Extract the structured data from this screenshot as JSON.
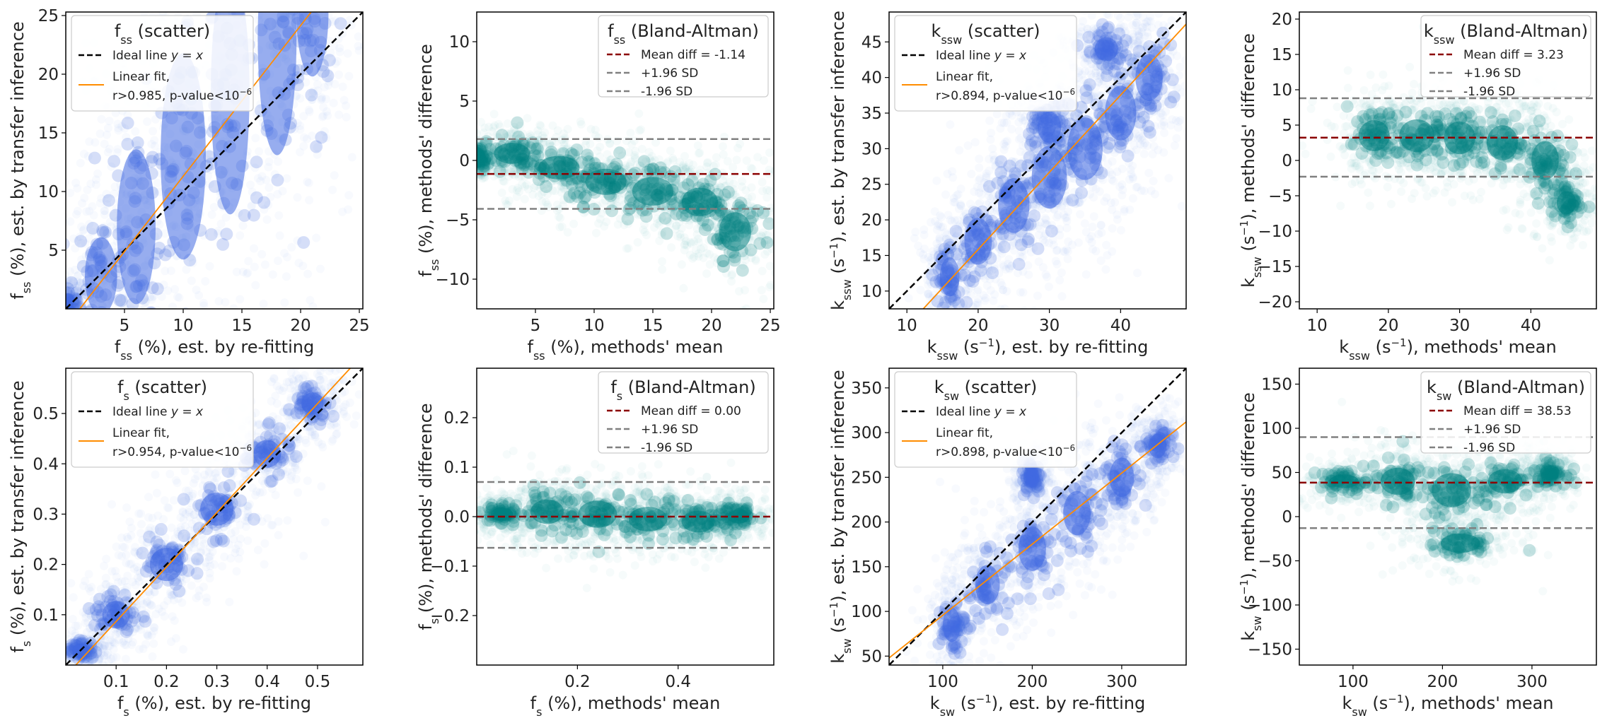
{
  "chart_data": [
    {
      "id": "fss-scatter",
      "type": "scatter",
      "xlim": [
        0,
        25.3
      ],
      "ylim": [
        0,
        25.3
      ],
      "xticks": [
        {
          "v": 5,
          "label": "5"
        },
        {
          "v": 10,
          "label": "10"
        },
        {
          "v": 15,
          "label": "15"
        },
        {
          "v": 20,
          "label": "20"
        },
        {
          "v": 25,
          "label": "25"
        }
      ],
      "yticks": [
        {
          "v": 5,
          "label": "5"
        },
        {
          "v": 10,
          "label": "10"
        },
        {
          "v": 15,
          "label": "15"
        },
        {
          "v": 20,
          "label": "20"
        },
        {
          "v": 25,
          "label": "25"
        }
      ],
      "xlabel": "f<tspan baseline-shift=\"sub\" font-size=\"16\">ss</tspan> (%), est. by re-fitting",
      "ylabel": "f<tspan baseline-shift=\"sub\" font-size=\"16\">ss</tspan> (%), est. by transfer inference",
      "legend": {
        "title": "f<tspan baseline-shift=\"sub\" font-size=\"16\">ss</tspan> (scatter)",
        "ideal": "Ideal line <tspan font-style=\"italic\">y</tspan> = <tspan font-style=\"italic\">x</tspan>",
        "fit1": "Linear fit,",
        "fit2": "r>0.985, p-value<10<tspan baseline-shift=\"super\" font-size=\"12\">−6</tspan>"
      },
      "ideal_line": [
        [
          0,
          0
        ],
        [
          25.3,
          25.3
        ]
      ],
      "fit_line": [
        [
          1.2,
          0
        ],
        [
          20.9,
          25.3
        ]
      ],
      "cloud": [
        [
          0.2,
          0.2,
          0.8,
          1.5
        ],
        [
          3,
          2.8,
          2.5,
          6
        ],
        [
          6,
          7,
          3,
          12
        ],
        [
          10,
          13,
          3.5,
          16
        ],
        [
          14,
          18.5,
          3,
          19
        ],
        [
          18,
          23,
          3,
          18
        ],
        [
          21,
          25.3,
          2.5,
          10
        ]
      ],
      "style": "scatter",
      "ideal_label": "Ideal line y = x",
      "fit_label": "Linear fit, r>0.985, p-value<10^-6"
    },
    {
      "id": "fss-ba",
      "type": "scatter",
      "xlim": [
        0,
        25.3
      ],
      "ylim": [
        -12.5,
        12.5
      ],
      "xticks": [
        {
          "v": 5,
          "label": "5"
        },
        {
          "v": 10,
          "label": "10"
        },
        {
          "v": 15,
          "label": "15"
        },
        {
          "v": 20,
          "label": "20"
        },
        {
          "v": 25,
          "label": "25"
        }
      ],
      "yticks": [
        {
          "v": -10,
          "label": "−10"
        },
        {
          "v": -5,
          "label": "−5"
        },
        {
          "v": 0,
          "label": "0"
        },
        {
          "v": 5,
          "label": "5"
        },
        {
          "v": 10,
          "label": "10"
        }
      ],
      "xlabel": "f<tspan baseline-shift=\"sub\" font-size=\"16\">ss</tspan> (%), methods' mean",
      "ylabel": "f<tspan baseline-shift=\"sub\" font-size=\"16\">ss</tspan> (%), methods' difference",
      "legend": {
        "title": "f<tspan baseline-shift=\"sub\" font-size=\"16\">ss</tspan> (Bland-Altman)",
        "mean": "Mean diff = -1.14",
        "plus": "+1.96 SD",
        "minus": "-1.96 SD"
      },
      "mean_diff": -1.14,
      "plus_sd": 1.8,
      "minus_sd": -4.08,
      "cloud": [
        [
          0.2,
          0.2,
          0.8,
          1.0
        ],
        [
          3,
          0.6,
          2.8,
          1.6
        ],
        [
          7,
          -0.6,
          3.2,
          1.8
        ],
        [
          11,
          -1.8,
          3.2,
          2.0
        ],
        [
          15,
          -2.6,
          3.2,
          2.2
        ],
        [
          19,
          -3.5,
          2.8,
          2.2
        ],
        [
          22,
          -6,
          2.5,
          3
        ]
      ],
      "style": "ba",
      "mean_label": "Mean diff = -1.14",
      "plus_label": "+1.96 SD",
      "minus_label": "-1.96 SD"
    },
    {
      "id": "kssw-scatter",
      "type": "scatter",
      "xlim": [
        7.5,
        49.2
      ],
      "ylim": [
        7.5,
        49.2
      ],
      "xticks": [
        {
          "v": 10,
          "label": "10"
        },
        {
          "v": 20,
          "label": "20"
        },
        {
          "v": 30,
          "label": "30"
        },
        {
          "v": 40,
          "label": "40"
        }
      ],
      "yticks": [
        {
          "v": 10,
          "label": "10"
        },
        {
          "v": 15,
          "label": "15"
        },
        {
          "v": 20,
          "label": "20"
        },
        {
          "v": 25,
          "label": "25"
        },
        {
          "v": 30,
          "label": "30"
        },
        {
          "v": 35,
          "label": "35"
        },
        {
          "v": 40,
          "label": "40"
        },
        {
          "v": 45,
          "label": "45"
        }
      ],
      "xlabel": "k<tspan baseline-shift=\"sub\" font-size=\"16\">ssw</tspan> (s<tspan baseline-shift=\"super\" font-size=\"15\">−1</tspan>), est. by re-fitting",
      "ylabel": "k<tspan baseline-shift=\"sub\" font-size=\"16\">ssw</tspan> (s<tspan baseline-shift=\"super\" font-size=\"15\">−1</tspan>), est. by transfer inference",
      "legend": {
        "title": "k<tspan baseline-shift=\"sub\" font-size=\"16\">ssw</tspan> (scatter)",
        "ideal": "Ideal line <tspan font-style=\"italic\">y</tspan> = <tspan font-style=\"italic\">x</tspan>",
        "fit1": "Linear fit,",
        "fit2": "r>0.894, p-value<10<tspan baseline-shift=\"super\" font-size=\"12\">−6</tspan>"
      },
      "ideal_line": [
        [
          7.5,
          7.5
        ],
        [
          49.2,
          49.2
        ]
      ],
      "fit_line": [
        [
          12.3,
          7.5
        ],
        [
          49.2,
          47.5
        ]
      ],
      "cloud": [
        [
          16,
          12,
          2.5,
          5
        ],
        [
          20,
          17,
          3.5,
          6
        ],
        [
          25,
          22,
          4,
          7
        ],
        [
          30,
          26,
          4.5,
          8
        ],
        [
          35,
          30,
          4.5,
          8
        ],
        [
          40,
          35,
          4,
          7
        ],
        [
          44,
          40,
          3.5,
          6
        ],
        [
          30,
          33,
          3,
          4
        ],
        [
          38,
          44,
          3,
          3
        ]
      ],
      "style": "scatter",
      "ideal_label": "Ideal line y = x",
      "fit_label": "Linear fit, r>0.894, p-value<10^-6"
    },
    {
      "id": "kssw-ba",
      "type": "scatter",
      "xlim": [
        7.5,
        49.2
      ],
      "ylim": [
        -21,
        21
      ],
      "xticks": [
        {
          "v": 10,
          "label": "10"
        },
        {
          "v": 20,
          "label": "20"
        },
        {
          "v": 30,
          "label": "30"
        },
        {
          "v": 40,
          "label": "40"
        }
      ],
      "yticks": [
        {
          "v": -20,
          "label": "−20"
        },
        {
          "v": -15,
          "label": "−15"
        },
        {
          "v": -10,
          "label": "−10"
        },
        {
          "v": -5,
          "label": "−5"
        },
        {
          "v": 0,
          "label": "0"
        },
        {
          "v": 5,
          "label": "5"
        },
        {
          "v": 10,
          "label": "10"
        },
        {
          "v": 15,
          "label": "15"
        },
        {
          "v": 20,
          "label": "20"
        }
      ],
      "xlabel": "k<tspan baseline-shift=\"sub\" font-size=\"16\">ssw</tspan> (s<tspan baseline-shift=\"super\" font-size=\"15\">−1</tspan>), methods' mean",
      "ylabel": "k<tspan baseline-shift=\"sub\" font-size=\"16\">ssw</tspan> (s<tspan baseline-shift=\"super\" font-size=\"15\">−1</tspan>), methods' difference",
      "legend": {
        "title": "k<tspan baseline-shift=\"sub\" font-size=\"16\">ssw</tspan> (Bland-Altman)",
        "mean": "Mean diff = 3.23",
        "plus": "+1.96 SD",
        "minus": "-1.96 SD"
      },
      "mean_diff": 3.23,
      "plus_sd": 8.8,
      "minus_sd": -2.3,
      "cloud": [
        [
          18,
          3.5,
          4,
          4
        ],
        [
          24,
          3.5,
          4.5,
          4.2
        ],
        [
          30,
          3.2,
          4,
          4.2
        ],
        [
          36,
          2.5,
          4,
          4.5
        ],
        [
          42,
          0,
          3.5,
          5
        ],
        [
          45,
          -6,
          2.5,
          3
        ]
      ],
      "style": "ba",
      "mean_label": "Mean diff = 3.23",
      "plus_label": "+1.96 SD",
      "minus_label": "-1.96 SD"
    },
    {
      "id": "fs-scatter",
      "type": "scatter",
      "xlim": [
        0,
        0.59
      ],
      "ylim": [
        0,
        0.59
      ],
      "xticks": [
        {
          "v": 0.1,
          "label": "0.1"
        },
        {
          "v": 0.2,
          "label": "0.2"
        },
        {
          "v": 0.3,
          "label": "0.3"
        },
        {
          "v": 0.4,
          "label": "0.4"
        },
        {
          "v": 0.5,
          "label": "0.5"
        }
      ],
      "yticks": [
        {
          "v": 0.1,
          "label": "0.1"
        },
        {
          "v": 0.2,
          "label": "0.2"
        },
        {
          "v": 0.3,
          "label": "0.3"
        },
        {
          "v": 0.4,
          "label": "0.4"
        },
        {
          "v": 0.5,
          "label": "0.5"
        }
      ],
      "xlabel": "f<tspan baseline-shift=\"sub\" font-size=\"16\">s</tspan> (%), est. by re-fitting",
      "ylabel": "f<tspan baseline-shift=\"sub\" font-size=\"16\">s</tspan> (%), est. by transfer inference",
      "legend": {
        "title": "f<tspan baseline-shift=\"sub\" font-size=\"16\">s</tspan> (scatter)",
        "ideal": "Ideal line <tspan font-style=\"italic\">y</tspan> = <tspan font-style=\"italic\">x</tspan>",
        "fit1": "Linear fit,",
        "fit2": "r>0.954, p-value<10<tspan baseline-shift=\"super\" font-size=\"12\">−6</tspan>"
      },
      "ideal_line": [
        [
          0,
          0
        ],
        [
          0.59,
          0.59
        ]
      ],
      "fit_line": [
        [
          0.02,
          0
        ],
        [
          0.565,
          0.59
        ]
      ],
      "cloud": [
        [
          0.03,
          0.03,
          0.03,
          0.02
        ],
        [
          0.1,
          0.1,
          0.05,
          0.05
        ],
        [
          0.2,
          0.2,
          0.06,
          0.06
        ],
        [
          0.3,
          0.31,
          0.06,
          0.06
        ],
        [
          0.4,
          0.42,
          0.05,
          0.05
        ],
        [
          0.49,
          0.52,
          0.04,
          0.04
        ]
      ],
      "style": "scatter",
      "ideal_label": "Ideal line y = x",
      "fit_label": "Linear fit, r>0.954, p-value<10^-6"
    },
    {
      "id": "fs-ba",
      "type": "scatter",
      "xlim": [
        0,
        0.59
      ],
      "ylim": [
        -0.3,
        0.3
      ],
      "xticks": [
        {
          "v": 0.2,
          "label": "0.2"
        },
        {
          "v": 0.4,
          "label": "0.4"
        }
      ],
      "yticks": [
        {
          "v": -0.2,
          "label": "−0.2"
        },
        {
          "v": -0.1,
          "label": "−0.1"
        },
        {
          "v": 0.0,
          "label": "0.0"
        },
        {
          "v": 0.1,
          "label": "0.1"
        },
        {
          "v": 0.2,
          "label": "0.2"
        }
      ],
      "xlabel": "f<tspan baseline-shift=\"sub\" font-size=\"16\">s</tspan> (%), methods' mean",
      "ylabel": "f<tspan baseline-shift=\"sub\" font-size=\"16\">s</tspan> (%), methods' difference",
      "legend": {
        "title": "f<tspan baseline-shift=\"sub\" font-size=\"16\">s</tspan> (Bland-Altman)",
        "mean": "Mean diff = 0.00",
        "plus": "+1.96 SD",
        "minus": "-1.96 SD"
      },
      "mean_diff": 0.0,
      "plus_sd": 0.07,
      "minus_sd": -0.063,
      "cloud": [
        [
          0.05,
          0.005,
          0.04,
          0.025
        ],
        [
          0.14,
          0.01,
          0.06,
          0.045
        ],
        [
          0.24,
          0.005,
          0.07,
          0.05
        ],
        [
          0.34,
          -0.005,
          0.07,
          0.045
        ],
        [
          0.44,
          -0.01,
          0.06,
          0.04
        ],
        [
          0.52,
          0.0,
          0.04,
          0.025
        ]
      ],
      "style": "ba",
      "mean_label": "Mean diff = 0.00",
      "plus_label": "+1.96 SD",
      "minus_label": "-1.96 SD"
    },
    {
      "id": "ksw-scatter",
      "type": "scatter",
      "xlim": [
        40,
        372
      ],
      "ylim": [
        40,
        372
      ],
      "xticks": [
        {
          "v": 100,
          "label": "100"
        },
        {
          "v": 200,
          "label": "200"
        },
        {
          "v": 300,
          "label": "300"
        }
      ],
      "yticks": [
        {
          "v": 50,
          "label": "50"
        },
        {
          "v": 100,
          "label": "100"
        },
        {
          "v": 150,
          "label": "150"
        },
        {
          "v": 200,
          "label": "200"
        },
        {
          "v": 250,
          "label": "250"
        },
        {
          "v": 300,
          "label": "300"
        },
        {
          "v": 350,
          "label": "350"
        }
      ],
      "xlabel": "k<tspan baseline-shift=\"sub\" font-size=\"16\">sw</tspan> (s<tspan baseline-shift=\"super\" font-size=\"15\">−1</tspan>), est. by re-fitting",
      "ylabel": "k<tspan baseline-shift=\"sub\" font-size=\"16\">sw</tspan> (s<tspan baseline-shift=\"super\" font-size=\"15\">−1</tspan>), est. by transfer inference",
      "legend": {
        "title": "k<tspan baseline-shift=\"sub\" font-size=\"16\">sw</tspan> (scatter)",
        "ideal": "Ideal line <tspan font-style=\"italic\">y</tspan> = <tspan font-style=\"italic\">x</tspan>",
        "fit1": "Linear fit,",
        "fit2": "r>0.898, p-value<10<tspan baseline-shift=\"super\" font-size=\"12\">−6</tspan>"
      },
      "ideal_line": [
        [
          40,
          40
        ],
        [
          372,
          372
        ]
      ],
      "fit_line": [
        [
          40,
          48
        ],
        [
          372,
          312
        ]
      ],
      "cloud": [
        [
          110,
          85,
          18,
          35
        ],
        [
          150,
          130,
          25,
          40
        ],
        [
          200,
          170,
          28,
          45
        ],
        [
          250,
          210,
          28,
          45
        ],
        [
          300,
          250,
          25,
          40
        ],
        [
          340,
          285,
          18,
          25
        ],
        [
          200,
          250,
          12,
          20
        ]
      ],
      "style": "scatter",
      "ideal_label": "Ideal line y = x",
      "fit_label": "Linear fit, r>0.898, p-value<10^-6"
    },
    {
      "id": "ksw-ba",
      "type": "scatter",
      "xlim": [
        40,
        372
      ],
      "ylim": [
        -168,
        168
      ],
      "xticks": [
        {
          "v": 100,
          "label": "100"
        },
        {
          "v": 200,
          "label": "200"
        },
        {
          "v": 300,
          "label": "300"
        }
      ],
      "yticks": [
        {
          "v": -150,
          "label": "−150"
        },
        {
          "v": -100,
          "label": "−100"
        },
        {
          "v": -50,
          "label": "−50"
        },
        {
          "v": 0,
          "label": "0"
        },
        {
          "v": 50,
          "label": "50"
        },
        {
          "v": 100,
          "label": "100"
        },
        {
          "v": 150,
          "label": "150"
        }
      ],
      "xlabel": "k<tspan baseline-shift=\"sub\" font-size=\"16\">sw</tspan> (s<tspan baseline-shift=\"super\" font-size=\"15\">−1</tspan>), methods' mean",
      "ylabel": "k<tspan baseline-shift=\"sub\" font-size=\"16\">sw</tspan> (s<tspan baseline-shift=\"super\" font-size=\"15\">−1</tspan>), methods' difference",
      "legend": {
        "title": "k<tspan baseline-shift=\"sub\" font-size=\"16\">sw</tspan> (Bland-Altman)",
        "mean": "Mean diff = 38.53",
        "plus": "+1.96 SD",
        "minus": "-1.96 SD"
      },
      "mean_diff": 38.53,
      "plus_sd": 90,
      "minus_sd": -13,
      "cloud": [
        [
          90,
          40,
          30,
          14
        ],
        [
          150,
          40,
          35,
          28
        ],
        [
          210,
          30,
          40,
          35
        ],
        [
          270,
          40,
          35,
          25
        ],
        [
          320,
          50,
          20,
          15
        ],
        [
          220,
          -30,
          40,
          20
        ]
      ],
      "style": "ba",
      "mean_label": "Mean diff = 38.53",
      "plus_label": "+1.96 SD",
      "minus_label": "-1.96 SD"
    }
  ]
}
